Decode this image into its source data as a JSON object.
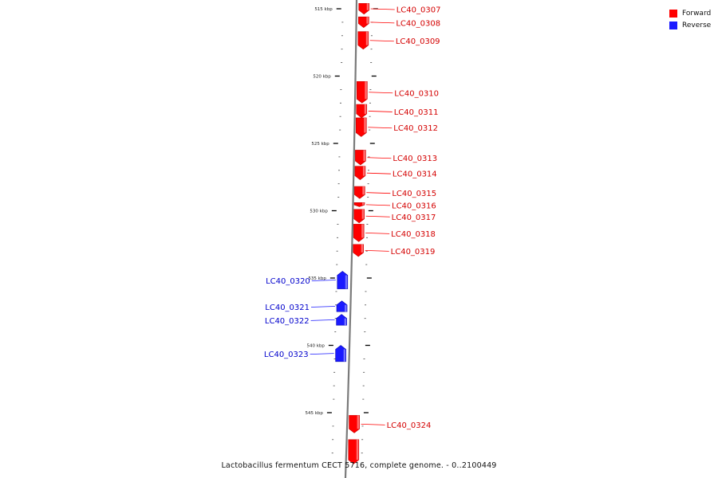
{
  "colors": {
    "forward": "#ff0000",
    "forward_dark": "#c40000",
    "forward_light": "#ff8a8a",
    "reverse": "#1a1aff",
    "reverse_dark": "#0000b0",
    "reverse_light": "#8a8aff",
    "backbone": "#7a7a7a"
  },
  "legend": [
    {
      "label": "Forward",
      "color": "#ff0000"
    },
    {
      "label": "Reverse",
      "color": "#1a1aff"
    }
  ],
  "caption": "Lactobacillus fermentum CECT 5716, complete genome. - 0..2100449",
  "scale": {
    "major_ticks": [
      {
        "kbp": 515,
        "label": "515 kbp"
      },
      {
        "kbp": 520,
        "label": "520 kbp"
      },
      {
        "kbp": 525,
        "label": "525 kbp"
      },
      {
        "kbp": 530,
        "label": "530 kbp"
      },
      {
        "kbp": 535,
        "label": "535 kbp"
      },
      {
        "kbp": 540,
        "label": "540 kbp"
      },
      {
        "kbp": 545,
        "label": "545 kbp"
      }
    ]
  },
  "genes": [
    {
      "locus": "LC40_0307",
      "strand": "forward",
      "start_kbp": 514.6,
      "end_kbp": 515.4
    },
    {
      "locus": "LC40_0308",
      "strand": "forward",
      "start_kbp": 515.6,
      "end_kbp": 516.4
    },
    {
      "locus": "LC40_0309",
      "strand": "forward",
      "start_kbp": 516.7,
      "end_kbp": 518.0
    },
    {
      "locus": "LC40_0310",
      "strand": "forward",
      "start_kbp": 520.4,
      "end_kbp": 522.0
    },
    {
      "locus": "LC40_0311",
      "strand": "forward",
      "start_kbp": 522.1,
      "end_kbp": 523.1
    },
    {
      "locus": "LC40_0312",
      "strand": "forward",
      "start_kbp": 523.1,
      "end_kbp": 524.5
    },
    {
      "locus": "LC40_0313",
      "strand": "forward",
      "start_kbp": 525.5,
      "end_kbp": 526.6
    },
    {
      "locus": "LC40_0314",
      "strand": "forward",
      "start_kbp": 526.7,
      "end_kbp": 527.7
    },
    {
      "locus": "LC40_0315",
      "strand": "forward",
      "start_kbp": 528.2,
      "end_kbp": 529.1
    },
    {
      "locus": "LC40_0316",
      "strand": "forward",
      "start_kbp": 529.4,
      "end_kbp": 529.7
    },
    {
      "locus": "LC40_0317",
      "strand": "forward",
      "start_kbp": 529.9,
      "end_kbp": 530.9
    },
    {
      "locus": "LC40_0318",
      "strand": "forward",
      "start_kbp": 531.0,
      "end_kbp": 532.3
    },
    {
      "locus": "LC40_0319",
      "strand": "forward",
      "start_kbp": 532.5,
      "end_kbp": 533.4
    },
    {
      "locus": "LC40_0320",
      "strand": "reverse",
      "start_kbp": 534.5,
      "end_kbp": 535.8
    },
    {
      "locus": "LC40_0321",
      "strand": "reverse",
      "start_kbp": 536.7,
      "end_kbp": 537.5
    },
    {
      "locus": "LC40_0322",
      "strand": "reverse",
      "start_kbp": 537.7,
      "end_kbp": 538.5
    },
    {
      "locus": "LC40_0323",
      "strand": "reverse",
      "start_kbp": 540.0,
      "end_kbp": 541.2
    },
    {
      "locus": "LC40_0324",
      "strand": "forward",
      "start_kbp": 545.2,
      "end_kbp": 546.5
    },
    {
      "locus": "",
      "strand": "forward",
      "start_kbp": 547.0,
      "end_kbp": 548.8
    }
  ]
}
